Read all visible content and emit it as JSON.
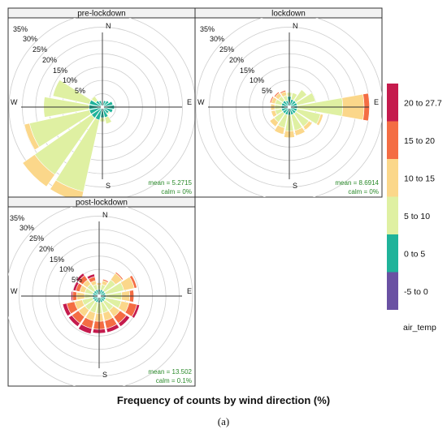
{
  "chart_data": {
    "type": "windrose",
    "x_title": "Frequency of counts by wind direction (%)",
    "figure_label": "(a)",
    "directions": [
      "N",
      "NNE",
      "NE",
      "ENE",
      "E",
      "ESE",
      "SE",
      "SSE",
      "S",
      "SSW",
      "SW",
      "WSW",
      "W",
      "WNW",
      "NW",
      "NNW"
    ],
    "compass_labels": {
      "north": "N",
      "east": "E",
      "south": "S",
      "west": "W"
    },
    "radial_ticks": [
      5,
      10,
      15,
      20,
      25,
      30,
      35
    ],
    "radial_tick_labels": [
      "5%",
      "10%",
      "15%",
      "20%",
      "25%",
      "30%",
      "35%"
    ],
    "legend": {
      "title": "air_temp",
      "bins": [
        {
          "label": "-5 to 0",
          "color": "#6a51a3"
        },
        {
          "label": "0 to 5",
          "color": "#1fb39a"
        },
        {
          "label": "5 to 10",
          "color": "#dff0a2"
        },
        {
          "label": "10 to 15",
          "color": "#fbd78a"
        },
        {
          "label": "15 to 20",
          "color": "#f46d43"
        },
        {
          "label": "20 to 27.7",
          "color": "#c51b4d"
        }
      ]
    },
    "panels": [
      {
        "title": "pre-lockdown",
        "mean_label": "mean = 5.2715",
        "calm_label": "calm = 0%",
        "series": [
          {
            "direction": "N",
            "values": [
              0.5,
              0.5,
              0,
              0,
              0,
              0
            ]
          },
          {
            "direction": "NNE",
            "values": [
              0,
              2.5,
              0,
              0,
              0,
              0
            ]
          },
          {
            "direction": "NE",
            "values": [
              0,
              3,
              0,
              0,
              0,
              0
            ]
          },
          {
            "direction": "ENE",
            "values": [
              0,
              4,
              0,
              0,
              0,
              0
            ]
          },
          {
            "direction": "E",
            "values": [
              0,
              4.5,
              0,
              0,
              0,
              0
            ]
          },
          {
            "direction": "ESE",
            "values": [
              0,
              4,
              0,
              0,
              0,
              0
            ]
          },
          {
            "direction": "SE",
            "values": [
              0,
              3,
              0.5,
              0,
              0,
              0
            ]
          },
          {
            "direction": "SSE",
            "values": [
              0,
              4,
              2.5,
              0,
              0,
              0
            ]
          },
          {
            "direction": "S",
            "values": [
              0,
              4,
              1.5,
              0,
              0,
              0
            ]
          },
          {
            "direction": "SSW",
            "values": [
              0,
              5,
              27.5,
              4,
              0,
              0
            ]
          },
          {
            "direction": "SW",
            "values": [
              0,
              5,
              26,
              5.5,
              0,
              0
            ]
          },
          {
            "direction": "WSW",
            "values": [
              0,
              5,
              23,
              2,
              0,
              0
            ]
          },
          {
            "direction": "W",
            "values": [
              0,
              5,
              17,
              0,
              0,
              0
            ]
          },
          {
            "direction": "WNW",
            "values": [
              0,
              5,
              14,
              0,
              0,
              0
            ]
          },
          {
            "direction": "NW",
            "values": [
              0,
              3,
              2,
              0,
              0,
              0
            ]
          },
          {
            "direction": "NNW",
            "values": [
              0,
              2.5,
              0,
              0,
              0,
              0
            ]
          }
        ]
      },
      {
        "title": "lockdown",
        "mean_label": "mean = 8.6914",
        "calm_label": "calm = 0%",
        "series": [
          {
            "direction": "N",
            "values": [
              0,
              4,
              1.5,
              0,
              0,
              0
            ]
          },
          {
            "direction": "NNE",
            "values": [
              0,
              3,
              2.5,
              0,
              0,
              0
            ]
          },
          {
            "direction": "NE",
            "values": [
              0,
              3,
              5,
              0,
              0,
              0
            ]
          },
          {
            "direction": "ENE",
            "values": [
              0,
              3,
              7,
              0,
              0,
              0
            ]
          },
          {
            "direction": "E",
            "values": [
              0,
              3,
              17,
              8,
              2,
              0
            ]
          },
          {
            "direction": "ESE",
            "values": [
              0,
              3,
              9,
              1,
              0,
              0
            ]
          },
          {
            "direction": "SE",
            "values": [
              0,
              3,
              6,
              1.5,
              0,
              0
            ]
          },
          {
            "direction": "SSE",
            "values": [
              0,
              3,
              6,
              2,
              0,
              0
            ]
          },
          {
            "direction": "S",
            "values": [
              0,
              3,
              6,
              2.5,
              0,
              0
            ]
          },
          {
            "direction": "SSW",
            "values": [
              0,
              3,
              5,
              2.5,
              0,
              0
            ]
          },
          {
            "direction": "SW",
            "values": [
              0,
              3,
              4,
              2,
              0,
              0
            ]
          },
          {
            "direction": "WSW",
            "values": [
              0,
              3,
              2.5,
              1.5,
              0,
              0
            ]
          },
          {
            "direction": "W",
            "values": [
              0,
              3,
              2.5,
              1.5,
              0,
              0
            ]
          },
          {
            "direction": "WNW",
            "values": [
              0,
              3,
              2.5,
              1.5,
              0.5,
              0
            ]
          },
          {
            "direction": "NW",
            "values": [
              0,
              3,
              2,
              1.5,
              0.5,
              0
            ]
          },
          {
            "direction": "NNW",
            "values": [
              0,
              2.5,
              2,
              1.5,
              0.5,
              0
            ]
          }
        ]
      },
      {
        "title": "post-lockdown",
        "mean_label": "mean = 13.502",
        "calm_label": "calm = 0.1%",
        "series": [
          {
            "direction": "N",
            "values": [
              0,
              2.5,
              1.5,
              1,
              0,
              0
            ]
          },
          {
            "direction": "NNE",
            "values": [
              0,
              2.5,
              2,
              1.5,
              0.5,
              0
            ]
          },
          {
            "direction": "NE",
            "values": [
              0,
              2.5,
              5,
              3,
              0.5,
              0
            ]
          },
          {
            "direction": "ENE",
            "values": [
              0,
              2.5,
              7,
              4,
              1,
              0
            ]
          },
          {
            "direction": "E",
            "values": [
              0,
              2.5,
              6,
              3,
              1.5,
              0
            ]
          },
          {
            "direction": "ESE",
            "values": [
              0,
              2.5,
              6,
              3,
              3,
              1
            ]
          },
          {
            "direction": "SE",
            "values": [
              0,
              2.5,
              4,
              3,
              3,
              1.5
            ]
          },
          {
            "direction": "SSE",
            "values": [
              0,
              2.5,
              4,
              3,
              3,
              1.5
            ]
          },
          {
            "direction": "S",
            "values": [
              0,
              2.5,
              4,
              3,
              3,
              1.5
            ]
          },
          {
            "direction": "SSW",
            "values": [
              0,
              2.5,
              4,
              3,
              3,
              2
            ]
          },
          {
            "direction": "SW",
            "values": [
              0,
              2.5,
              4,
              3,
              3,
              1.5
            ]
          },
          {
            "direction": "WSW",
            "values": [
              0,
              2.5,
              4,
              3,
              3,
              1.5
            ]
          },
          {
            "direction": "W",
            "values": [
              0,
              2.5,
              3,
              3,
              1.5,
              0.5
            ]
          },
          {
            "direction": "WNW",
            "values": [
              0,
              2.5,
              3,
              2,
              1.5,
              1
            ]
          },
          {
            "direction": "NW",
            "values": [
              0,
              2.5,
              3,
              2,
              2,
              1
            ]
          },
          {
            "direction": "NNW",
            "values": [
              0,
              2.5,
              2,
              1.5,
              1.5,
              1
            ]
          }
        ]
      }
    ],
    "ylim": [
      0,
      35
    ],
    "grid": true
  }
}
